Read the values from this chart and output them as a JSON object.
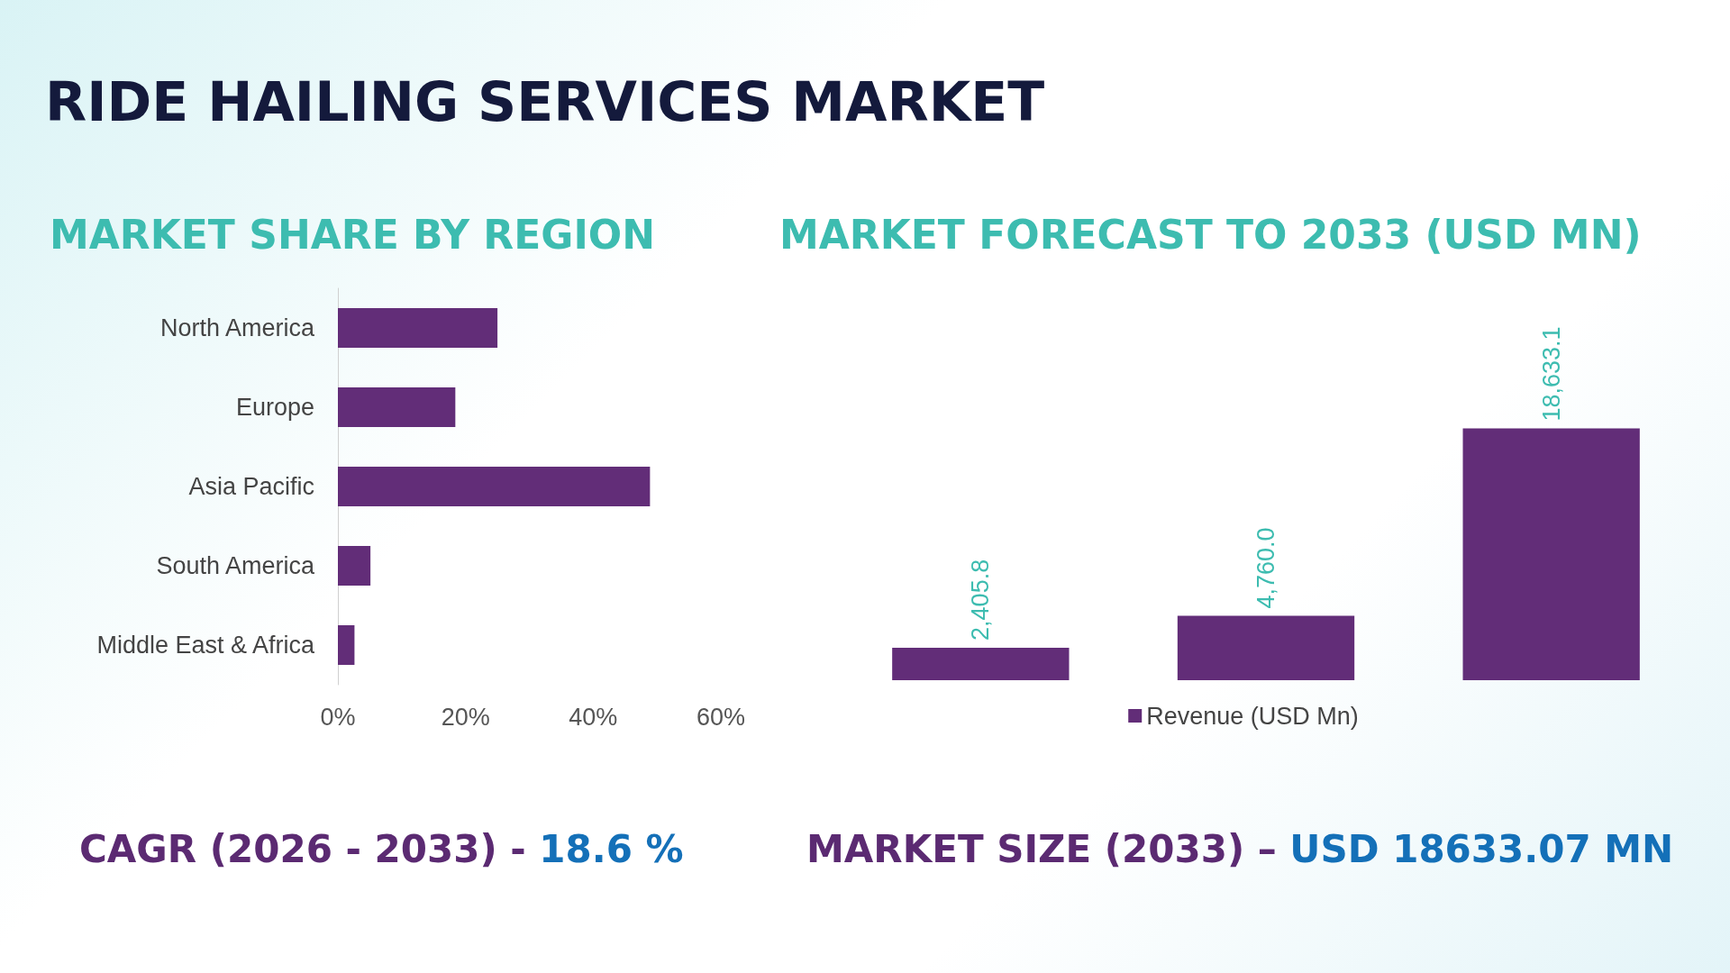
{
  "chart_data": [
    {
      "type": "other",
      "title": "RIDE HAILING SERVICES MARKET",
      "annotations": [
        "CAGR (2026 - 2033) - 18.6 %",
        "MARKET SIZE (2033) – USD 18633.07 MN"
      ]
    },
    {
      "type": "bar",
      "title": "MARKET SHARE BY REGION",
      "orientation": "horizontal",
      "categories": [
        "North America",
        "Europe",
        "Asia Pacific",
        "South America",
        "Middle East & Africa"
      ],
      "values": [
        25,
        18.4,
        48.9,
        5.1,
        2.6
      ],
      "color": "#622d78",
      "xlim": [
        0,
        60
      ],
      "xticks": [
        {
          "value": 0,
          "label": "0%"
        },
        {
          "value": 20,
          "label": "20%"
        },
        {
          "value": 40,
          "label": "40%"
        },
        {
          "value": 60,
          "label": "60%"
        }
      ],
      "grid": false,
      "legend": false
    },
    {
      "type": "bar",
      "title": "MARKET FORECAST TO 2033 (USD MN)",
      "categories": [
        null,
        null,
        null
      ],
      "series": [
        {
          "name": "Revenue (USD Mn)",
          "color": "#622d78",
          "values": [
            2405.8,
            4760.0,
            18633.1
          ],
          "value_labels": [
            "2,405.8",
            "4,760.0",
            "18,633.1"
          ]
        }
      ],
      "grid": false,
      "legend": "bottom"
    }
  ]
}
